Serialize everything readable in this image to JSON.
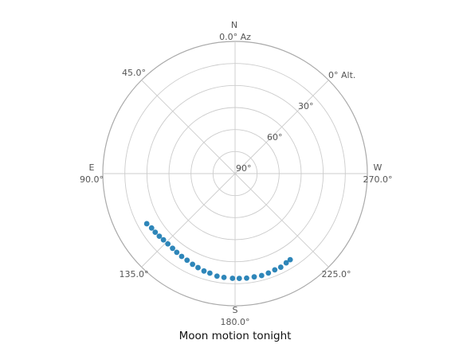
{
  "chart_data": {
    "type": "scatter",
    "projection": "polar",
    "title": "Moon motion tonight",
    "azimuth_direction": "counter-clockwise",
    "azimuth_zero": "top",
    "radial_axis": "altitude (90° at center, 0° at edge)",
    "cardinal_labels": {
      "north": "N",
      "east": "E",
      "south": "S",
      "west": "W"
    },
    "azimuth_tick_labels": [
      "0.0° Az",
      "45.0°",
      "90.0°",
      "135.0°",
      "180.0°",
      "225.0°",
      "270.0°",
      "0° Alt."
    ],
    "altitude_tick_labels": [
      "90°",
      "60°",
      "30°"
    ],
    "altitude_gridlines_deg": [
      90,
      75,
      60,
      45,
      30,
      15,
      0
    ],
    "azimuth_gridlines_deg": [
      0,
      45,
      90,
      135,
      180,
      225,
      270,
      315
    ],
    "grid": true,
    "colors": {
      "points": "#2e86b9",
      "grid": "#cccccc",
      "frame": "#aaaaaa"
    },
    "series": [
      {
        "points": [
          {
            "az": 119.6,
            "alt": 20.9
          },
          {
            "az": 123.1,
            "alt": 22.2
          },
          {
            "az": 126.3,
            "alt": 22.6
          },
          {
            "az": 129.6,
            "alt": 23.1
          },
          {
            "az": 132.8,
            "alt": 23.6
          },
          {
            "az": 136.3,
            "alt": 23.8
          },
          {
            "az": 140.1,
            "alt": 23.7
          },
          {
            "az": 143.5,
            "alt": 23.3
          },
          {
            "az": 147.2,
            "alt": 22.9
          },
          {
            "az": 151.0,
            "alt": 22.6
          },
          {
            "az": 154.9,
            "alt": 21.8
          },
          {
            "az": 158.5,
            "alt": 21.2
          },
          {
            "az": 162.3,
            "alt": 20.4
          },
          {
            "az": 165.8,
            "alt": 20.1
          },
          {
            "az": 170.0,
            "alt": 19.1
          },
          {
            "az": 173.9,
            "alt": 18.9
          },
          {
            "az": 178.6,
            "alt": 18.7
          },
          {
            "az": 182.3,
            "alt": 18.6
          },
          {
            "az": 186.3,
            "alt": 18.4
          },
          {
            "az": 190.5,
            "alt": 18.5
          },
          {
            "az": 194.6,
            "alt": 18.3
          },
          {
            "az": 198.5,
            "alt": 18.6
          },
          {
            "az": 202.4,
            "alt": 19.1
          },
          {
            "az": 206.0,
            "alt": 19.1
          },
          {
            "az": 209.8,
            "alt": 20.0
          },
          {
            "az": 212.6,
            "alt": 20.4
          }
        ]
      }
    ]
  }
}
